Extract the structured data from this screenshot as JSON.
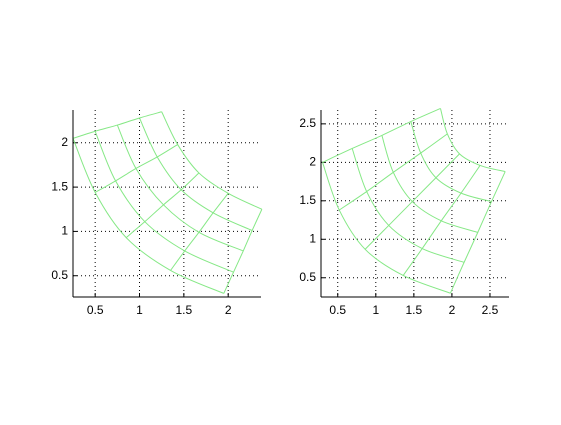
{
  "chart_data": [
    {
      "type": "mesh",
      "color": "#86e886",
      "x": [
        [
          0.25,
          0.5,
          0.75,
          1.0,
          1.25
        ],
        [
          0.5,
          0.73,
          0.96,
          1.2,
          1.43
        ],
        [
          0.85,
          1.06,
          1.27,
          1.47,
          1.67
        ],
        [
          1.35,
          1.51,
          1.67,
          1.83,
          2.0
        ],
        [
          1.95,
          2.06,
          2.17,
          2.27,
          2.38
        ]
      ],
      "y": [
        [
          2.05,
          2.13,
          2.2,
          2.28,
          2.35
        ],
        [
          1.44,
          1.57,
          1.71,
          1.84,
          1.98
        ],
        [
          0.93,
          1.11,
          1.3,
          1.47,
          1.66
        ],
        [
          0.56,
          0.78,
          0.99,
          1.21,
          1.43
        ],
        [
          0.3,
          0.54,
          0.78,
          1.01,
          1.25
        ]
      ],
      "xlim": [
        0.25,
        2.37
      ],
      "ylim": [
        0.26,
        2.37
      ],
      "xticks": [
        0.5,
        1,
        1.5,
        2
      ],
      "yticks": [
        0.5,
        1,
        1.5,
        2
      ],
      "grid": true
    },
    {
      "type": "mesh",
      "color": "#86e886",
      "x": [
        [
          0.3,
          0.69,
          1.08,
          1.46,
          1.85
        ],
        [
          0.52,
          0.88,
          1.23,
          1.59,
          1.94
        ],
        [
          0.86,
          1.17,
          1.48,
          1.79,
          2.1
        ],
        [
          1.36,
          1.61,
          1.86,
          2.12,
          2.37
        ],
        [
          1.98,
          2.16,
          2.34,
          2.52,
          2.7
        ]
      ],
      "y": [
        [
          2.0,
          2.18,
          2.35,
          2.53,
          2.7
        ],
        [
          1.38,
          1.62,
          1.87,
          2.12,
          2.37
        ],
        [
          0.87,
          1.18,
          1.49,
          1.8,
          2.11
        ],
        [
          0.53,
          0.88,
          1.24,
          1.6,
          1.96
        ],
        [
          0.3,
          0.7,
          1.09,
          1.49,
          1.88
        ]
      ],
      "xlim": [
        0.28,
        2.75
      ],
      "ylim": [
        0.25,
        2.68
      ],
      "xticks": [
        0.5,
        1,
        1.5,
        2,
        2.5
      ],
      "yticks": [
        0.5,
        1,
        1.5,
        2,
        2.5
      ],
      "grid": true
    }
  ]
}
